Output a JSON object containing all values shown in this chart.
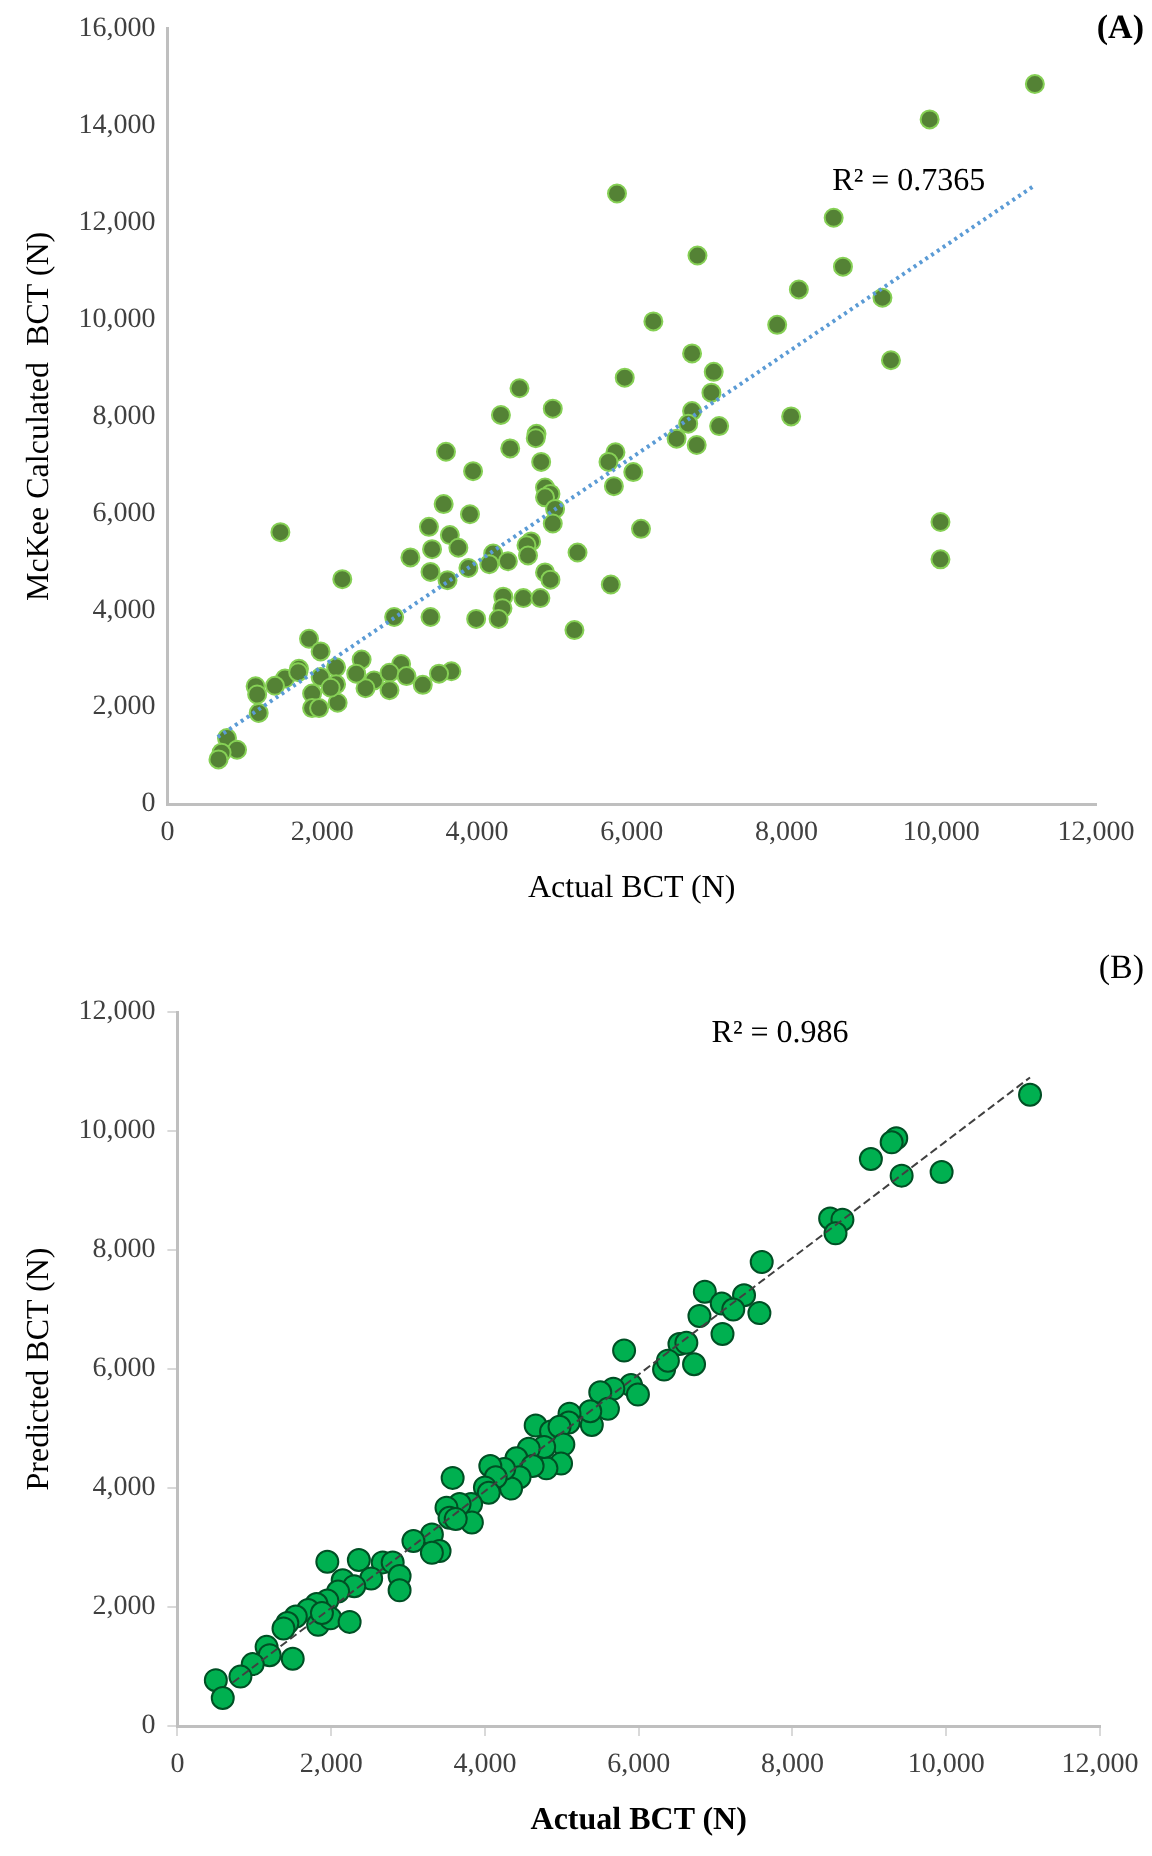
{
  "chart_data": [
    {
      "type": "scatter",
      "title": "(A)",
      "xlabel": "Actual BCT (N)",
      "ylabel": "McKee Calculated  BCT (N)",
      "xlim": [
        0,
        12000
      ],
      "xticks": [
        0,
        {
          "value": 2000,
          "label": "2,000"
        },
        {
          "value": 4000,
          "label": "4,000"
        },
        {
          "value": 6000,
          "label": "6,000"
        },
        {
          "value": 8000,
          "label": "8,000"
        },
        {
          "value": 10000,
          "label": "10,000"
        },
        {
          "value": 12000,
          "label": "12,000"
        }
      ],
      "ylim": [
        0,
        16000
      ],
      "yticks": [
        0,
        {
          "value": 2000,
          "label": "2,000"
        },
        {
          "value": 4000,
          "label": "4,000"
        },
        {
          "value": 6000,
          "label": "6,000"
        },
        {
          "value": 8000,
          "label": "8,000"
        },
        {
          "value": 10000,
          "label": "10,000"
        },
        {
          "value": 12000,
          "label": "12,000"
        },
        {
          "value": 14000,
          "label": "14,000"
        },
        {
          "value": 16000,
          "label": "16,000"
        }
      ],
      "grid": false,
      "legend": false,
      "marker": "circle",
      "annotations": [
        "R² = 0.7365"
      ],
      "series": [
        {
          "color": "#548235",
          "x": [
            11210,
            9850,
            5810,
            8610,
            6850,
            8730,
            8160,
            9240,
            6280,
            7880,
            6780,
            9350,
            5910,
            7060,
            4550,
            7030,
            4310,
            4980,
            6780,
            6730,
            7130,
            8060,
            6580,
            6840,
            3600,
            4430,
            4770,
            4760,
            5790,
            5700,
            6020,
            3950,
            4830,
            5770,
            4880,
            4950,
            4880,
            5010,
            3570,
            3910,
            4980,
            6120,
            3380,
            3650,
            3760,
            3420,
            1460,
            4700,
            4640,
            4660,
            3140,
            4210,
            4160,
            4400,
            5300,
            3400,
            3890,
            4880,
            4950,
            3620,
            2260,
            5730,
            4340,
            4600,
            4820,
            4330,
            4280,
            3990,
            3400,
            2930,
            5260,
            9990,
            9990,
            1830,
            1980,
            1700,
            2180,
            2510,
            3020,
            3670,
            3510,
            1140,
            1160,
            1520,
            1390,
            1980,
            2180,
            2670,
            2870,
            3090,
            3300,
            2560,
            2870,
            2440,
            1870,
            1870,
            1960,
            2200,
            1180,
            1690,
            2110,
            770,
            900,
            700,
            660
          ],
          "values": [
            14860,
            14130,
            12600,
            12100,
            11320,
            11090,
            10620,
            10450,
            9960,
            9890,
            9300,
            9160,
            8800,
            8920,
            8580,
            8490,
            8030,
            8160,
            8110,
            7850,
            7800,
            8000,
            7540,
            7410,
            7270,
            7340,
            7640,
            7550,
            7260,
            7060,
            6850,
            6870,
            7060,
            6560,
            6530,
            6400,
            6330,
            6090,
            6190,
            5980,
            5790,
            5680,
            5720,
            5550,
            5290,
            5260,
            5610,
            5420,
            5340,
            5130,
            5090,
            5170,
            4950,
            5010,
            5190,
            4790,
            4870,
            4780,
            4630,
            4620,
            4640,
            4530,
            4280,
            4250,
            4250,
            4040,
            3820,
            3820,
            3860,
            3860,
            3590,
            5820,
            5050,
            3410,
            3150,
            2790,
            2820,
            2980,
            2890,
            2740,
            2690,
            2430,
            2260,
            2590,
            2440,
            2620,
            2470,
            2550,
            2710,
            2640,
            2460,
            2390,
            2350,
            2690,
            2280,
            1980,
            1980,
            2090,
            1880,
            2720,
            2400,
            1360,
            1120,
            1060,
            920
          ]
        },
        {
          "type": "line",
          "color": "#5b9bd5",
          "marker": "none",
          "line_style": "dotted",
          "x": [
            650,
            11210
          ],
          "values": [
            1380,
            12770
          ]
        }
      ]
    },
    {
      "type": "scatter",
      "title": "(B)",
      "xlabel": "Actual BCT (N)",
      "ylabel": "Predicted BCT (N)",
      "xlim": [
        0,
        12000
      ],
      "xticks": [
        0,
        {
          "value": 2000,
          "label": "2,000"
        },
        {
          "value": 4000,
          "label": "4,000"
        },
        {
          "value": 6000,
          "label": "6,000"
        },
        {
          "value": 8000,
          "label": "8,000"
        },
        {
          "value": 10000,
          "label": "10,000"
        },
        {
          "value": 12000,
          "label": "12,000"
        }
      ],
      "ylim": [
        0,
        12000
      ],
      "yticks": [
        0,
        {
          "value": 2000,
          "label": "2,000"
        },
        {
          "value": 4000,
          "label": "4,000"
        },
        {
          "value": 6000,
          "label": "6,000"
        },
        {
          "value": 8000,
          "label": "8,000"
        },
        {
          "value": 10000,
          "label": "10,000"
        },
        {
          "value": 12000,
          "label": "12,000"
        }
      ],
      "grid": false,
      "legend": false,
      "marker": "circle",
      "annotations": [
        "R² = 0.986"
      ],
      "series": [
        {
          "color": "#00b050",
          "x": [
            11090,
            9350,
            9290,
            9020,
            9420,
            9940,
            8490,
            8650,
            8560,
            7600,
            6860,
            7370,
            7080,
            7230,
            6790,
            7570,
            7090,
            5810,
            6530,
            6620,
            6330,
            6380,
            6720,
            5900,
            5990,
            5670,
            5500,
            5600,
            5390,
            5370,
            5100,
            5090,
            4660,
            4860,
            4970,
            5020,
            4990,
            4800,
            4770,
            4570,
            4410,
            4620,
            4450,
            4340,
            4250,
            4070,
            4140,
            4000,
            4050,
            3580,
            3820,
            3670,
            3500,
            3540,
            3830,
            3620,
            3310,
            3070,
            3410,
            3310,
            1950,
            2360,
            2670,
            2800,
            2520,
            2890,
            2890,
            2150,
            2300,
            2090,
            1950,
            1810,
            1700,
            1540,
            1430,
            1380,
            1830,
            1990,
            2240,
            1880,
            1500,
            1160,
            1200,
            980,
            820,
            500,
            590
          ],
          "values": [
            10610,
            9880,
            9810,
            9530,
            9250,
            9310,
            8530,
            8510,
            8280,
            7800,
            7300,
            7240,
            7100,
            7000,
            6890,
            6940,
            6590,
            6310,
            6420,
            6440,
            5990,
            6140,
            6080,
            5730,
            5570,
            5670,
            5610,
            5330,
            5060,
            5290,
            5250,
            5100,
            5050,
            4950,
            5030,
            4730,
            4410,
            4330,
            4690,
            4660,
            4500,
            4370,
            4180,
            3990,
            4320,
            4370,
            4180,
            4010,
            3920,
            4170,
            3730,
            3730,
            3670,
            3500,
            3420,
            3480,
            3220,
            3110,
            2940,
            2910,
            2760,
            2790,
            2750,
            2750,
            2480,
            2520,
            2280,
            2450,
            2350,
            2260,
            2110,
            2050,
            1950,
            1840,
            1730,
            1640,
            1700,
            1810,
            1750,
            1900,
            1130,
            1330,
            1190,
            1040,
            830,
            770,
            470
          ]
        },
        {
          "type": "line",
          "color": "#404040",
          "marker": "none",
          "line_style": "dashed",
          "x": [
            720,
            11090
          ],
          "values": [
            730,
            10900
          ]
        }
      ]
    }
  ]
}
